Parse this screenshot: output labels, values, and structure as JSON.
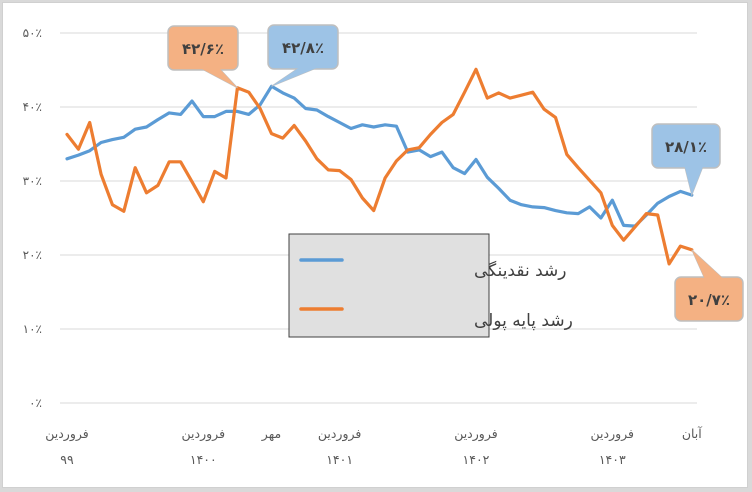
{
  "chart_data": {
    "type": "line",
    "title": "",
    "xlabel": "",
    "ylabel": "",
    "ylim": [
      0,
      50
    ],
    "y_ticks": [
      "۰٪",
      "۱۰٪",
      "۲۰٪",
      "۳۰٪",
      "۴۰٪",
      "۵۰٪"
    ],
    "y_tick_values": [
      0,
      10,
      20,
      30,
      40,
      50
    ],
    "grid": true,
    "legend_position": "center (inside plot)",
    "x_tick_labels": [
      {
        "index": 0,
        "line1": "فروردین",
        "line2": "۹۹"
      },
      {
        "index": 12,
        "line1": "فروردین",
        "line2": "۱۴۰۰"
      },
      {
        "index": 18,
        "line1": "مهر",
        "line2": ""
      },
      {
        "index": 24,
        "line1": "فروردین",
        "line2": "۱۴۰۱"
      },
      {
        "index": 36,
        "line1": "فروردین",
        "line2": "۱۴۰۲"
      },
      {
        "index": 48,
        "line1": "فروردین",
        "line2": "۱۴۰۳"
      },
      {
        "index": 55,
        "line1": "آبان",
        "line2": ""
      }
    ],
    "x_range": "فروردین ۹۹ تا آبان ۱۴۰۳ (ماهانه، ۵۶ نقطه)",
    "series": [
      {
        "name": "رشد نقدینگی",
        "color": "#5B9BD5",
        "values": [
          33.0,
          33.5,
          34.1,
          35.2,
          35.6,
          35.9,
          37.0,
          37.3,
          38.3,
          39.2,
          39.0,
          40.8,
          38.7,
          38.7,
          39.4,
          39.4,
          39.0,
          40.3,
          42.8,
          41.9,
          41.2,
          39.8,
          39.6,
          38.7,
          37.9,
          37.1,
          37.6,
          37.3,
          37.6,
          37.4,
          33.9,
          34.2,
          33.3,
          33.9,
          31.8,
          31.0,
          32.9,
          30.5,
          29.0,
          27.4,
          26.8,
          26.5,
          26.4,
          26.0,
          25.7,
          25.6,
          26.5,
          25.0,
          27.4,
          24.0,
          23.9,
          25.4,
          27.0,
          27.9,
          28.6,
          28.1
        ]
      },
      {
        "name": "رشد پایه پولی",
        "color": "#ED7D31",
        "values": [
          36.3,
          34.3,
          37.9,
          30.9,
          26.8,
          25.9,
          31.8,
          28.4,
          29.4,
          32.6,
          32.6,
          29.9,
          27.2,
          31.3,
          30.4,
          42.6,
          42.0,
          39.8,
          36.4,
          35.8,
          37.5,
          35.4,
          33.0,
          31.5,
          31.4,
          30.2,
          27.7,
          26.0,
          30.4,
          32.7,
          34.2,
          34.5,
          36.3,
          37.9,
          39.0,
          42.0,
          45.1,
          41.2,
          41.9,
          41.2,
          41.6,
          42.0,
          39.7,
          38.6,
          33.6,
          31.8,
          30.1,
          28.4,
          24.0,
          22.0,
          23.8,
          25.6,
          25.4,
          18.8,
          21.2,
          20.7
        ]
      }
    ],
    "annotations": [
      {
        "series": "رشد پایه پولی",
        "index": 15,
        "text": "۴۲/۶٪",
        "value": 42.6
      },
      {
        "series": "رشد نقدینگی",
        "index": 18,
        "text": "۴۲/۸٪",
        "value": 42.8
      },
      {
        "series": "رشد نقدینگی",
        "index": 55,
        "text": "۲۸/۱٪",
        "value": 28.1
      },
      {
        "series": "رشد پایه پولی",
        "index": 55,
        "text": "۲۰/۷٪",
        "value": 20.7
      }
    ]
  },
  "legend": {
    "items": [
      {
        "label": "رشد نقدینگی",
        "color": "#5B9BD5"
      },
      {
        "label": "رشد پایه پولی",
        "color": "#ED7D31"
      }
    ]
  },
  "colors": {
    "grid": "#d9d9d9",
    "callout_blue_fill": "#9DC3E6",
    "callout_orange_fill": "#F4B183",
    "callout_border": "#bfbfbf",
    "legend_bg": "#e0e0e0",
    "legend_border": "#404040"
  }
}
